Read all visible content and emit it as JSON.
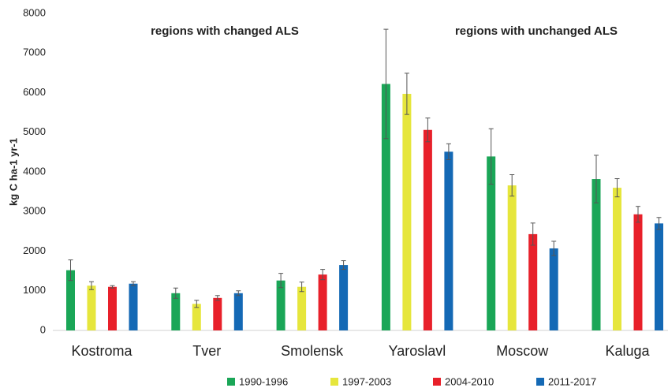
{
  "chart_data": {
    "type": "bar",
    "y_label": "kg C ha-1 yr-1",
    "annotations": [
      "regions with changed ALS",
      "regions with unchanged ALS"
    ],
    "categories": [
      "Kostroma",
      "Tver",
      "Smolensk",
      "Yaroslavl",
      "Moscow",
      "Kaluga"
    ],
    "series": [
      {
        "name": "1990-1996",
        "color": "#1aa657",
        "values": [
          1520,
          940,
          1260,
          6220,
          4390,
          3820
        ],
        "errors": [
          260,
          130,
          180,
          1380,
          700,
          600
        ]
      },
      {
        "name": "1997-2003",
        "color": "#e6e63c",
        "values": [
          1130,
          670,
          1100,
          5970,
          3660,
          3600
        ],
        "errors": [
          100,
          90,
          120,
          520,
          270,
          230
        ]
      },
      {
        "name": "2004-2010",
        "color": "#e8202a",
        "values": [
          1100,
          820,
          1410,
          5060,
          2430,
          2930
        ],
        "errors": [
          30,
          60,
          130,
          300,
          280,
          200
        ]
      },
      {
        "name": "2011-2017",
        "color": "#1469b5",
        "values": [
          1180,
          940,
          1650,
          4510,
          2070,
          2700
        ],
        "errors": [
          50,
          60,
          110,
          200,
          180,
          150
        ]
      }
    ],
    "ylim": [
      0,
      8000
    ],
    "yticks": [
      0,
      1000,
      2000,
      3000,
      4000,
      5000,
      6000,
      7000,
      8000
    ],
    "grid": false
  }
}
